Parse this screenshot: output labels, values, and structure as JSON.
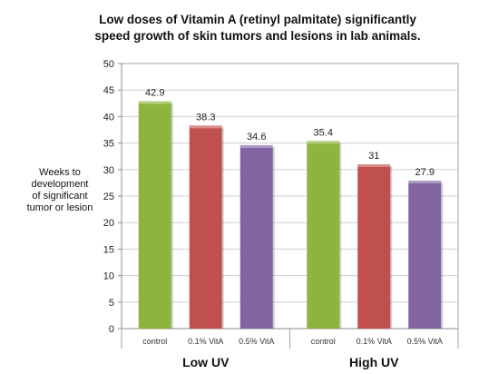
{
  "chart_data": {
    "type": "bar",
    "title_lines": [
      "Low doses of Vitamin A (retinyl palmitate) significantly",
      "speed growth of skin tumors and lesions in lab animals."
    ],
    "ylabel_lines": [
      "Weeks to",
      "development",
      "of significant",
      "tumor or lesion"
    ],
    "ylim": [
      0,
      50
    ],
    "yticks": [
      0,
      5,
      10,
      15,
      20,
      25,
      30,
      35,
      40,
      45,
      50
    ],
    "grid": true,
    "groups": [
      {
        "name": "Low UV",
        "bars": [
          {
            "category": "control",
            "value": 42.9,
            "label": "42.9",
            "color": "#8db43e"
          },
          {
            "category": "0.1% VitA",
            "value": 38.3,
            "label": "38.3",
            "color": "#c0504d"
          },
          {
            "category": "0.5% VitA",
            "value": 34.6,
            "label": "34.6",
            "color": "#8064a2"
          }
        ]
      },
      {
        "name": "High UV",
        "bars": [
          {
            "category": "control",
            "value": 35.4,
            "label": "35.4",
            "color": "#8db43e"
          },
          {
            "category": "0.1% VitA",
            "value": 31,
            "label": "31",
            "color": "#c0504d"
          },
          {
            "category": "0.5% VitA",
            "value": 27.9,
            "label": "27.9",
            "color": "#8064a2"
          }
        ]
      }
    ]
  }
}
